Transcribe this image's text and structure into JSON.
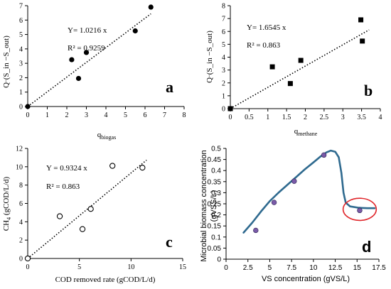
{
  "chart_data": [
    {
      "id": "a",
      "type": "scatter",
      "panel_label": "a",
      "xlabel": "q_biogas",
      "xlabel_main": "q",
      "xlabel_sub": "biogas",
      "ylabel": "Q·(S_in −S_out)",
      "xlim": [
        0,
        8
      ],
      "ylim": [
        0,
        7
      ],
      "xticks": [
        0,
        1,
        2,
        3,
        4,
        5,
        6,
        7,
        8
      ],
      "yticks": [
        0,
        1,
        2,
        3,
        4,
        5,
        6,
        7
      ],
      "xtick_labels": [
        "0",
        "1",
        "2",
        "3",
        "4",
        "5",
        "6",
        "7",
        "8"
      ],
      "ytick_labels": [
        "0",
        "1",
        "2",
        "3",
        "4",
        "5",
        "6",
        "7"
      ],
      "marker": "filled-circle",
      "points": [
        [
          0,
          0
        ],
        [
          2.25,
          3.25
        ],
        [
          2.6,
          1.95
        ],
        [
          3.0,
          3.75
        ],
        [
          5.5,
          5.25
        ],
        [
          6.3,
          6.9
        ]
      ],
      "trendline": {
        "slope": 1.0216,
        "x_range": [
          0,
          6.3
        ],
        "style": "dotted"
      },
      "equation": "Y= 1.0216 x",
      "r2": "R² = 0.9259"
    },
    {
      "id": "b",
      "type": "scatter",
      "panel_label": "b",
      "xlabel": "q_methane",
      "xlabel_main": "q",
      "xlabel_sub": "methane",
      "ylabel": "Q·(S_in −S_out)",
      "xlim": [
        0,
        4
      ],
      "ylim": [
        0,
        8
      ],
      "xticks": [
        0,
        0.5,
        1,
        1.5,
        2,
        2.5,
        3,
        3.5,
        4
      ],
      "yticks": [
        0,
        1,
        2,
        3,
        4,
        5,
        6,
        7,
        8
      ],
      "xtick_labels": [
        "0",
        "0.5",
        "1",
        "1.5",
        "2",
        "2.5",
        "3",
        "3.5",
        "4"
      ],
      "ytick_labels": [
        "0",
        "1",
        "2",
        "3",
        "4",
        "5",
        "6",
        "7",
        "8"
      ],
      "marker": "filled-square",
      "points": [
        [
          0,
          0
        ],
        [
          1.12,
          3.25
        ],
        [
          1.6,
          1.95
        ],
        [
          1.88,
          3.75
        ],
        [
          3.48,
          6.9
        ],
        [
          3.52,
          5.25
        ]
      ],
      "trendline": {
        "slope": 1.6545,
        "x_range": [
          0,
          3.7
        ],
        "style": "dotted"
      },
      "equation": "Y= 1.6545 x",
      "r2": "R² = 0.863"
    },
    {
      "id": "c",
      "type": "scatter",
      "panel_label": "c",
      "xlabel": "COD removed rate (gCOD/L/d)",
      "ylabel": "CH4 (gCOD/L/d)",
      "ylabel_pre": "CH",
      "ylabel_sub": "4",
      "ylabel_post": " (gCOD/L/d)",
      "xlim": [
        0,
        15
      ],
      "ylim": [
        0,
        12
      ],
      "xticks": [
        0,
        5,
        10,
        15
      ],
      "yticks": [
        0,
        2,
        4,
        6,
        8,
        10,
        12
      ],
      "xtick_labels": [
        "0",
        "5",
        "10",
        "15"
      ],
      "ytick_labels": [
        "0",
        "2",
        "4",
        "6",
        "8",
        "10",
        "12"
      ],
      "marker": "open-circle",
      "points": [
        [
          0,
          0
        ],
        [
          3.1,
          4.6
        ],
        [
          5.3,
          3.2
        ],
        [
          6.1,
          5.4
        ],
        [
          8.2,
          10.1
        ],
        [
          11.1,
          9.9
        ]
      ],
      "trendline": {
        "slope": 0.9324,
        "x_range": [
          0,
          11.5
        ],
        "style": "dotted"
      },
      "equation": "Y = 0.9324 x",
      "r2": "R² = 0.863"
    },
    {
      "id": "d",
      "type": "line",
      "panel_label": "d",
      "xlabel": "VS concentration (gVS/L)",
      "ylabel": "Microbial biomass concentration (gVSS/L)",
      "ylabel_line1": "Microbial biomass concentration",
      "ylabel_line2": "(gVSS/L)",
      "xlim": [
        0,
        17.5
      ],
      "ylim": [
        0,
        0.5
      ],
      "xticks": [
        0,
        2.5,
        5,
        7.5,
        10,
        12.5,
        15,
        17.5
      ],
      "yticks": [
        0,
        0.05,
        0.1,
        0.15,
        0.2,
        0.25,
        0.3,
        0.35,
        0.4,
        0.45,
        0.5
      ],
      "xtick_labels": [
        "0",
        "2.5",
        "5",
        "7.5",
        "10",
        "12.5",
        "15",
        "17.5"
      ],
      "ytick_labels": [
        "0",
        "0.05",
        "0.1",
        "0.15",
        "0.2",
        "0.25",
        "0.3",
        "0.35",
        "0.4",
        "0.45",
        "0.5"
      ],
      "grid": "none",
      "line_color": "#2f6a8f",
      "marker_color": "#7a5aa8",
      "highlight_color": "#e0262b",
      "curve": [
        [
          2,
          0.12
        ],
        [
          3,
          0.165
        ],
        [
          4,
          0.215
        ],
        [
          5,
          0.262
        ],
        [
          6,
          0.3
        ],
        [
          7,
          0.335
        ],
        [
          8,
          0.37
        ],
        [
          9,
          0.405
        ],
        [
          10,
          0.437
        ],
        [
          10.8,
          0.463
        ],
        [
          11.5,
          0.482
        ],
        [
          12.0,
          0.49
        ],
        [
          12.5,
          0.485
        ],
        [
          12.9,
          0.46
        ],
        [
          13.2,
          0.39
        ],
        [
          13.45,
          0.3
        ],
        [
          13.7,
          0.255
        ],
        [
          14.2,
          0.238
        ],
        [
          15.2,
          0.232
        ],
        [
          16.2,
          0.23
        ],
        [
          17.0,
          0.23
        ]
      ],
      "points": [
        [
          3.4,
          0.13
        ],
        [
          5.5,
          0.256
        ],
        [
          7.8,
          0.352
        ],
        [
          11.2,
          0.47
        ],
        [
          15.3,
          0.22
        ]
      ],
      "highlight": {
        "cx": 15.3,
        "cy": 0.225,
        "rx": 1.9,
        "ry": 0.05
      }
    }
  ]
}
